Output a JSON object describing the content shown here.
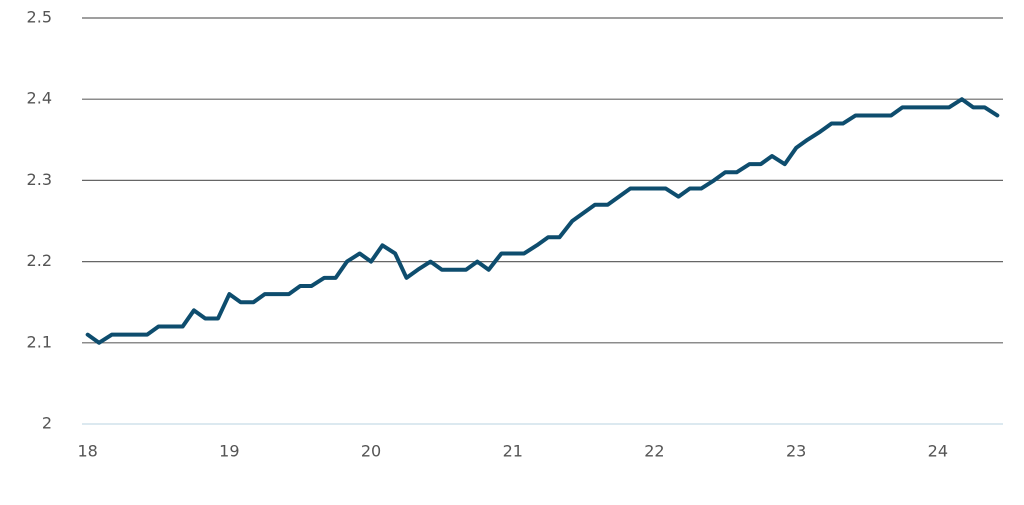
{
  "chart_data": {
    "type": "line",
    "x": [
      18,
      18.08,
      18.17,
      18.25,
      18.33,
      18.42,
      18.5,
      18.58,
      18.67,
      18.75,
      18.83,
      18.92,
      19,
      19.08,
      19.17,
      19.25,
      19.33,
      19.42,
      19.5,
      19.58,
      19.67,
      19.75,
      19.83,
      19.92,
      20,
      20.08,
      20.17,
      20.25,
      20.33,
      20.42,
      20.5,
      20.58,
      20.67,
      20.75,
      20.83,
      20.92,
      21,
      21.08,
      21.17,
      21.25,
      21.33,
      21.42,
      21.5,
      21.58,
      21.67,
      21.75,
      21.83,
      21.92,
      22,
      22.08,
      22.17,
      22.25,
      22.33,
      22.42,
      22.5,
      22.58,
      22.67,
      22.75,
      22.83,
      22.92,
      23,
      23.08,
      23.17,
      23.25,
      23.33,
      23.42,
      23.5,
      23.58,
      23.67,
      23.75,
      23.83,
      23.92,
      24,
      24.08,
      24.17,
      24.25,
      24.33,
      24.42
    ],
    "series": [
      {
        "color": "#0e4d6e",
        "values": [
          2.11,
          2.1,
          2.11,
          2.11,
          2.11,
          2.11,
          2.12,
          2.12,
          2.12,
          2.14,
          2.13,
          2.13,
          2.16,
          2.15,
          2.15,
          2.16,
          2.16,
          2.16,
          2.17,
          2.17,
          2.18,
          2.18,
          2.2,
          2.21,
          2.2,
          2.22,
          2.21,
          2.18,
          2.19,
          2.2,
          2.19,
          2.19,
          2.19,
          2.2,
          2.19,
          2.21,
          2.21,
          2.21,
          2.22,
          2.23,
          2.23,
          2.25,
          2.26,
          2.27,
          2.27,
          2.28,
          2.29,
          2.29,
          2.29,
          2.29,
          2.28,
          2.29,
          2.29,
          2.3,
          2.31,
          2.31,
          2.32,
          2.32,
          2.33,
          2.32,
          2.34,
          2.35,
          2.36,
          2.37,
          2.37,
          2.38,
          2.38,
          2.38,
          2.38,
          2.39,
          2.39,
          2.39,
          2.39,
          2.39,
          2.4,
          2.39,
          2.39,
          2.38
        ]
      }
    ],
    "xlim": [
      17.96,
      24.46
    ],
    "xticks": [
      18,
      19,
      20,
      21,
      22,
      23,
      24
    ],
    "ylim": [
      2,
      2.5
    ],
    "yticks": [
      2,
      2.1,
      2.2,
      2.3,
      2.4,
      2.5
    ],
    "grid": true
  }
}
